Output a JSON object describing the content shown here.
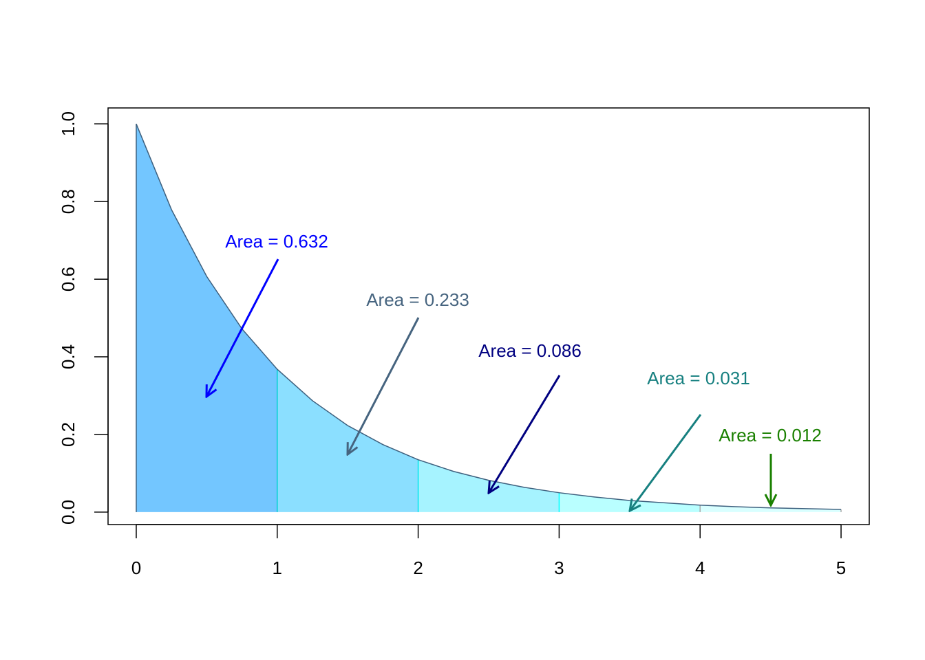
{
  "chart_data": {
    "type": "area",
    "x": [
      0,
      0.25,
      0.5,
      0.75,
      1,
      1.25,
      1.5,
      1.75,
      2,
      2.25,
      2.5,
      2.75,
      3,
      3.25,
      3.5,
      3.75,
      4,
      4.25,
      4.5,
      4.75,
      5
    ],
    "y": [
      1,
      0.779,
      0.607,
      0.472,
      0.368,
      0.287,
      0.223,
      0.174,
      0.135,
      0.105,
      0.082,
      0.064,
      0.05,
      0.039,
      0.03,
      0.024,
      0.018,
      0.014,
      0.011,
      0.009,
      0.007
    ],
    "line_color": "#3e607e",
    "regions": [
      {
        "x": [
          0,
          1
        ],
        "color": "#73c6ff",
        "edge_color": "#00bfff",
        "label": "Area = 0.632",
        "label_color": "#0000ff"
      },
      {
        "x": [
          1,
          2
        ],
        "color": "#8bdfff",
        "edge_color": "#00ced1",
        "label": "Area = 0.233",
        "label_color": "#46647f"
      },
      {
        "x": [
          2,
          3
        ],
        "color": "#a6f3ff",
        "edge_color": "#00e5ee",
        "label": "Area = 0.086",
        "label_color": "#000080"
      },
      {
        "x": [
          3,
          4
        ],
        "color": "#b9ffff",
        "edge_color": "#00ffff",
        "label": "Area = 0.031",
        "label_color": "#178080"
      },
      {
        "x": [
          4,
          5
        ],
        "color": "#d9ffff",
        "edge_color": "#aaaaaa",
        "label": "Area = 0.012",
        "label_color": "#1a8000"
      }
    ],
    "xlim": [
      -0.2,
      5.2
    ],
    "ylim": [
      -0.032,
      1.041
    ],
    "xticks": [
      0,
      1,
      2,
      3,
      4,
      5
    ],
    "yticks": [
      {
        "value": 0,
        "label": "0.0"
      },
      {
        "value": 0.2,
        "label": "0.2"
      },
      {
        "value": 0.4,
        "label": "0.4"
      },
      {
        "value": 0.6,
        "label": "0.6"
      },
      {
        "value": 0.8,
        "label": "0.8"
      },
      {
        "value": 1,
        "label": "1.0"
      }
    ]
  }
}
